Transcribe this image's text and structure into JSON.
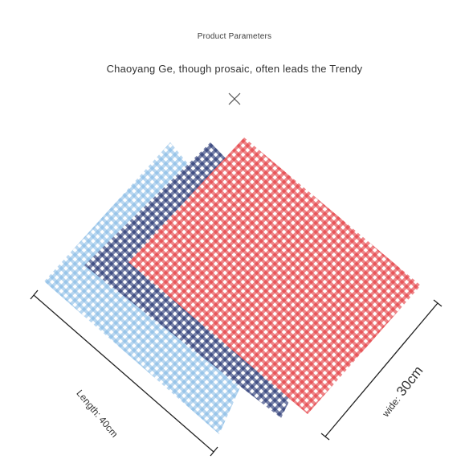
{
  "header": {
    "section_label": "Product Parameters",
    "headline": "Chaoyang Ge, though prosaic, often leads the Trendy"
  },
  "icons": {
    "divider": "close-icon"
  },
  "product": {
    "colors": {
      "light_blue": "#7fb6e4",
      "navy": "#1e2f6e",
      "red": "#e3353a",
      "white": "#ffffff"
    },
    "dimensions": {
      "length_label": "Length: 40cm",
      "wide_word": "wide:",
      "wide_value": "30cm"
    }
  }
}
